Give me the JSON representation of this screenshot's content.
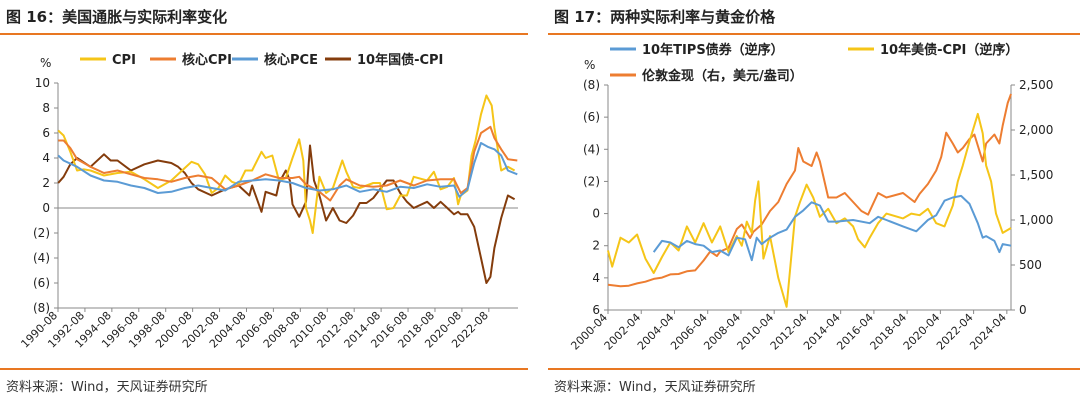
{
  "left": {
    "figure_title": "图 16：美国通胀与实际利率变化",
    "source": "资料来源：Wind，天风证券研究所",
    "colors": {
      "accent": "#e87722"
    }
  },
  "right": {
    "figure_title": "图 17：两种实际利率与黄金价格",
    "source": "资料来源：Wind，天风证券研究所",
    "colors": {
      "accent": "#e87722"
    }
  },
  "chart_data": [
    {
      "type": "line",
      "unit_label": "%",
      "ylim": [
        -8,
        10
      ],
      "y_ticks": [
        10,
        8,
        6,
        4,
        2,
        0,
        -2,
        -4,
        -6,
        -8
      ],
      "y_tick_labels": [
        "10",
        "8",
        "6",
        "4",
        "2",
        "0",
        "(2)",
        "(4)",
        "(6)",
        "(8)"
      ],
      "xlim": [
        1990.583,
        2024.75
      ],
      "x_ticks": [
        1990.583,
        1992.583,
        1994.583,
        1996.583,
        1998.583,
        2000.583,
        2002.583,
        2004.583,
        2006.583,
        2008.583,
        2010.583,
        2012.583,
        2014.583,
        2016.583,
        2018.583,
        2020.583,
        2022.583
      ],
      "x_tick_labels": [
        "1990-08",
        "1992-08",
        "1994-08",
        "1996-08",
        "1998-08",
        "2000-08",
        "2002-08",
        "2004-08",
        "2006-08",
        "2008-08",
        "2010-08",
        "2012-08",
        "2014-08",
        "2016-08",
        "2018-08",
        "2020-08",
        "2022-08"
      ],
      "grid": false,
      "legend_position": "top",
      "series": [
        {
          "name": "CPI",
          "color": "#f5c518",
          "x": [
            1990.6,
            1991.0,
            1991.5,
            1992.0,
            1992.5,
            1993.0,
            1994.0,
            1995.0,
            1996.0,
            1997.0,
            1998.0,
            1999.0,
            2000.0,
            2000.5,
            2001.0,
            2001.5,
            2002.0,
            2002.5,
            2003.0,
            2003.5,
            2004.0,
            2004.5,
            2005.0,
            2005.7,
            2006.0,
            2006.5,
            2007.0,
            2007.5,
            2008.0,
            2008.5,
            2008.8,
            2009.0,
            2009.3,
            2009.5,
            2010.0,
            2010.5,
            2011.0,
            2011.7,
            2012.0,
            2012.5,
            2013.0,
            2014.0,
            2014.5,
            2015.0,
            2015.5,
            2016.0,
            2016.5,
            2017.0,
            2018.0,
            2018.5,
            2019.0,
            2019.5,
            2020.0,
            2020.3,
            2020.5,
            2021.0,
            2021.3,
            2021.6,
            2022.0,
            2022.4,
            2022.8,
            2023.0,
            2023.5,
            2024.0,
            2024.5
          ],
          "y": [
            6.2,
            5.8,
            4.5,
            3.0,
            3.1,
            3.0,
            2.6,
            2.8,
            2.9,
            2.3,
            1.6,
            2.2,
            3.2,
            3.7,
            3.5,
            2.7,
            1.2,
            1.6,
            2.6,
            2.1,
            1.9,
            3.0,
            3.0,
            4.5,
            4.0,
            4.2,
            2.2,
            2.4,
            4.0,
            5.5,
            3.8,
            0.0,
            -1.0,
            -2.0,
            2.5,
            1.2,
            1.6,
            3.8,
            2.9,
            1.7,
            1.6,
            2.0,
            2.0,
            -0.1,
            0.0,
            1.0,
            1.0,
            2.5,
            2.2,
            2.9,
            1.5,
            1.7,
            2.4,
            0.3,
            1.0,
            1.4,
            4.2,
            5.4,
            7.5,
            9.0,
            8.2,
            6.4,
            3.0,
            3.3,
            3.0
          ]
        },
        {
          "name": "核心CPI",
          "color": "#ed7d31",
          "x": [
            1990.6,
            1991.0,
            1991.5,
            1992.0,
            1993.0,
            1994.0,
            1995.0,
            1996.0,
            1997.0,
            1998.0,
            1999.0,
            2000.0,
            2001.0,
            2002.0,
            2003.0,
            2004.0,
            2005.0,
            2006.0,
            2007.0,
            2008.0,
            2008.5,
            2009.0,
            2010.0,
            2010.8,
            2011.5,
            2012.0,
            2013.0,
            2014.0,
            2015.0,
            2016.0,
            2017.0,
            2018.0,
            2019.0,
            2020.0,
            2020.5,
            2021.0,
            2021.5,
            2022.0,
            2022.7,
            2023.0,
            2023.5,
            2024.0,
            2024.7
          ],
          "y": [
            5.4,
            5.4,
            4.8,
            3.9,
            3.3,
            2.8,
            3.0,
            2.7,
            2.4,
            2.3,
            2.1,
            2.4,
            2.6,
            2.4,
            1.5,
            1.8,
            2.2,
            2.7,
            2.4,
            2.4,
            2.5,
            1.9,
            1.3,
            0.6,
            1.8,
            2.3,
            1.8,
            1.7,
            1.8,
            2.2,
            1.8,
            2.2,
            2.3,
            2.3,
            1.2,
            1.6,
            4.5,
            6.0,
            6.5,
            5.6,
            4.7,
            3.9,
            3.8
          ]
        },
        {
          "name": "核心PCE",
          "color": "#5b9bd5",
          "x": [
            1990.6,
            1991.0,
            1992.0,
            1993.0,
            1994.0,
            1995.0,
            1996.0,
            1997.0,
            1998.0,
            1999.0,
            2000.0,
            2001.0,
            2002.0,
            2003.0,
            2004.0,
            2005.0,
            2006.0,
            2007.0,
            2008.0,
            2009.0,
            2010.0,
            2011.0,
            2012.0,
            2013.0,
            2014.0,
            2015.0,
            2016.0,
            2017.0,
            2018.0,
            2019.0,
            2020.0,
            2020.4,
            2021.0,
            2021.5,
            2022.0,
            2022.5,
            2023.0,
            2023.5,
            2024.0,
            2024.7
          ],
          "y": [
            4.2,
            3.8,
            3.3,
            2.6,
            2.2,
            2.1,
            1.8,
            1.6,
            1.2,
            1.3,
            1.6,
            1.8,
            1.6,
            1.4,
            2.1,
            2.2,
            2.3,
            2.2,
            2.0,
            1.6,
            1.4,
            1.5,
            1.8,
            1.3,
            1.5,
            1.3,
            1.7,
            1.6,
            1.9,
            1.7,
            1.8,
            0.9,
            1.5,
            3.6,
            5.2,
            4.9,
            4.7,
            4.2,
            3.0,
            2.7
          ]
        },
        {
          "name": "10年国债-CPI",
          "color": "#843c0c",
          "x": [
            1990.6,
            1991.0,
            1991.5,
            1992.0,
            1993.0,
            1994.0,
            1994.5,
            1995.0,
            1996.0,
            1997.0,
            1998.0,
            1999.0,
            1999.5,
            2000.0,
            2000.5,
            2001.0,
            2002.0,
            2003.0,
            2004.0,
            2004.8,
            2005.0,
            2005.7,
            2006.0,
            2006.8,
            2007.0,
            2007.5,
            2007.8,
            2008.0,
            2008.5,
            2009.0,
            2009.3,
            2009.6,
            2010.0,
            2010.5,
            2011.0,
            2011.5,
            2012.0,
            2012.5,
            2013.0,
            2013.5,
            2014.0,
            2015.0,
            2015.5,
            2016.0,
            2016.5,
            2017.0,
            2018.0,
            2018.5,
            2019.0,
            2019.5,
            2020.0,
            2020.3,
            2020.5,
            2021.0,
            2021.5,
            2022.0,
            2022.4,
            2022.7,
            2023.0,
            2023.5,
            2024.0,
            2024.5
          ],
          "y": [
            2.0,
            2.5,
            3.5,
            4.0,
            3.3,
            4.3,
            3.8,
            3.8,
            3.0,
            3.5,
            3.8,
            3.6,
            3.3,
            2.8,
            2.0,
            1.5,
            1.0,
            1.5,
            1.8,
            1.0,
            1.8,
            -0.3,
            1.3,
            1.0,
            2.0,
            3.0,
            2.2,
            0.3,
            -0.7,
            0.5,
            5.0,
            2.2,
            1.0,
            -1.0,
            0.0,
            -1.0,
            -1.2,
            -0.6,
            0.4,
            0.4,
            0.8,
            2.2,
            2.2,
            1.2,
            0.5,
            0.0,
            0.5,
            0.0,
            0.5,
            0.0,
            -0.5,
            -0.3,
            -0.5,
            -0.5,
            -1.5,
            -4.0,
            -6.0,
            -5.5,
            -3.2,
            -0.8,
            1.0,
            0.7
          ]
        }
      ]
    },
    {
      "type": "line",
      "unit_label": "%",
      "left_axis": {
        "ylim_inverted": [
          -8,
          6
        ],
        "ticks": [
          -8,
          -6,
          -4,
          -2,
          0,
          2,
          4,
          6
        ],
        "tick_labels": [
          "(8)",
          "(6)",
          "(4)",
          "(2)",
          "0",
          "2",
          "4",
          "6"
        ]
      },
      "right_axis": {
        "ylim": [
          0,
          2500
        ],
        "ticks": [
          0,
          500,
          1000,
          1500,
          2000,
          2500
        ],
        "tick_labels": [
          "0",
          "500",
          "1,000",
          "1,500",
          "2,000",
          "2,500"
        ]
      },
      "xlim": [
        2000.25,
        2024.5
      ],
      "x_ticks": [
        2000.25,
        2002.25,
        2004.25,
        2006.25,
        2008.25,
        2010.25,
        2012.25,
        2014.25,
        2016.25,
        2018.25,
        2020.25,
        2022.25,
        2024.25
      ],
      "x_tick_labels": [
        "2000-04",
        "2002-04",
        "2004-04",
        "2006-04",
        "2008-04",
        "2010-04",
        "2012-04",
        "2014-04",
        "2016-04",
        "2018-04",
        "2020-04",
        "2022-04",
        "2024-04"
      ],
      "grid": false,
      "legend_position": "top",
      "series": [
        {
          "name": "10年TIPS债券（逆序）",
          "color": "#5b9bd5",
          "axis": "left",
          "x": [
            2003.0,
            2003.5,
            2004.0,
            2004.5,
            2005.0,
            2005.5,
            2006.0,
            2006.5,
            2007.0,
            2007.5,
            2008.0,
            2008.5,
            2008.9,
            2009.2,
            2009.5,
            2010.0,
            2010.5,
            2011.0,
            2011.5,
            2012.0,
            2012.5,
            2013.0,
            2013.5,
            2014.0,
            2015.0,
            2016.0,
            2016.5,
            2017.0,
            2018.0,
            2018.8,
            2019.5,
            2020.0,
            2020.5,
            2021.0,
            2021.5,
            2022.0,
            2022.5,
            2022.8,
            2023.0,
            2023.5,
            2023.8,
            2024.0,
            2024.5
          ],
          "y": [
            2.4,
            1.7,
            1.8,
            2.1,
            1.7,
            1.9,
            2.0,
            2.4,
            2.3,
            2.6,
            1.5,
            1.6,
            2.9,
            1.5,
            1.9,
            1.5,
            1.2,
            1.0,
            0.2,
            -0.2,
            -0.7,
            -0.5,
            0.5,
            0.5,
            0.4,
            0.6,
            0.2,
            0.4,
            0.8,
            1.1,
            0.4,
            0.1,
            -0.8,
            -1.0,
            -1.1,
            -0.6,
            0.6,
            1.5,
            1.4,
            1.7,
            2.4,
            1.9,
            2.0
          ]
        },
        {
          "name": "10年美债-CPI（逆序）",
          "color": "#f5c518",
          "axis": "left",
          "x": [
            2000.25,
            2000.5,
            2001.0,
            2001.5,
            2002.0,
            2002.5,
            2003.0,
            2003.5,
            2004.0,
            2004.5,
            2005.0,
            2005.5,
            2006.0,
            2006.5,
            2007.0,
            2007.5,
            2008.0,
            2008.3,
            2008.6,
            2008.9,
            2009.1,
            2009.3,
            2009.6,
            2010.0,
            2010.5,
            2011.0,
            2011.5,
            2011.8,
            2012.2,
            2012.6,
            2013.0,
            2013.5,
            2014.0,
            2014.5,
            2015.0,
            2015.3,
            2015.7,
            2016.0,
            2016.5,
            2017.0,
            2018.0,
            2018.5,
            2019.0,
            2019.5,
            2020.0,
            2020.5,
            2021.0,
            2021.3,
            2021.6,
            2022.0,
            2022.3,
            2022.5,
            2022.8,
            2023.0,
            2023.3,
            2023.6,
            2024.0,
            2024.5
          ],
          "y": [
            2.3,
            3.3,
            1.5,
            1.8,
            1.3,
            2.8,
            3.7,
            2.7,
            1.8,
            2.3,
            0.8,
            1.8,
            0.6,
            1.8,
            0.8,
            2.4,
            1.4,
            2.0,
            0.5,
            1.2,
            -0.8,
            -2.0,
            2.8,
            1.4,
            4.0,
            5.8,
            0.2,
            -0.7,
            -1.8,
            -1.0,
            0.2,
            -0.3,
            0.6,
            0.3,
            0.8,
            1.6,
            2.1,
            1.5,
            0.6,
            0.0,
            0.3,
            0.0,
            0.1,
            -0.3,
            0.6,
            0.8,
            -0.5,
            -2.0,
            -3.0,
            -4.5,
            -5.5,
            -6.2,
            -5.0,
            -3.0,
            -2.0,
            0.0,
            1.2,
            0.9
          ]
        },
        {
          "name": "伦敦金现（右，美元/盎司）",
          "color": "#ed7d31",
          "axis": "right",
          "x": [
            2000.25,
            2001.0,
            2001.5,
            2002.0,
            2002.5,
            2003.0,
            2003.5,
            2004.0,
            2004.5,
            2005.0,
            2005.5,
            2006.0,
            2006.4,
            2006.8,
            2007.0,
            2007.5,
            2008.0,
            2008.3,
            2008.8,
            2009.0,
            2009.5,
            2010.0,
            2010.5,
            2011.0,
            2011.5,
            2011.7,
            2012.0,
            2012.5,
            2012.8,
            2013.0,
            2013.5,
            2014.0,
            2014.5,
            2015.0,
            2015.5,
            2015.9,
            2016.5,
            2017.0,
            2018.0,
            2018.7,
            2019.0,
            2019.5,
            2020.0,
            2020.3,
            2020.6,
            2021.0,
            2021.3,
            2021.6,
            2022.0,
            2022.3,
            2022.8,
            2023.0,
            2023.5,
            2023.8,
            2024.0,
            2024.3,
            2024.5
          ],
          "y": [
            280,
            265,
            270,
            295,
            315,
            345,
            360,
            395,
            400,
            430,
            440,
            550,
            650,
            600,
            650,
            690,
            900,
            950,
            800,
            870,
            950,
            1100,
            1200,
            1400,
            1550,
            1800,
            1650,
            1600,
            1750,
            1650,
            1250,
            1250,
            1300,
            1200,
            1100,
            1060,
            1300,
            1250,
            1300,
            1200,
            1290,
            1400,
            1550,
            1700,
            1970,
            1850,
            1750,
            1800,
            1900,
            1950,
            1650,
            1850,
            1950,
            1850,
            2050,
            2300,
            2400
          ]
        }
      ]
    }
  ]
}
